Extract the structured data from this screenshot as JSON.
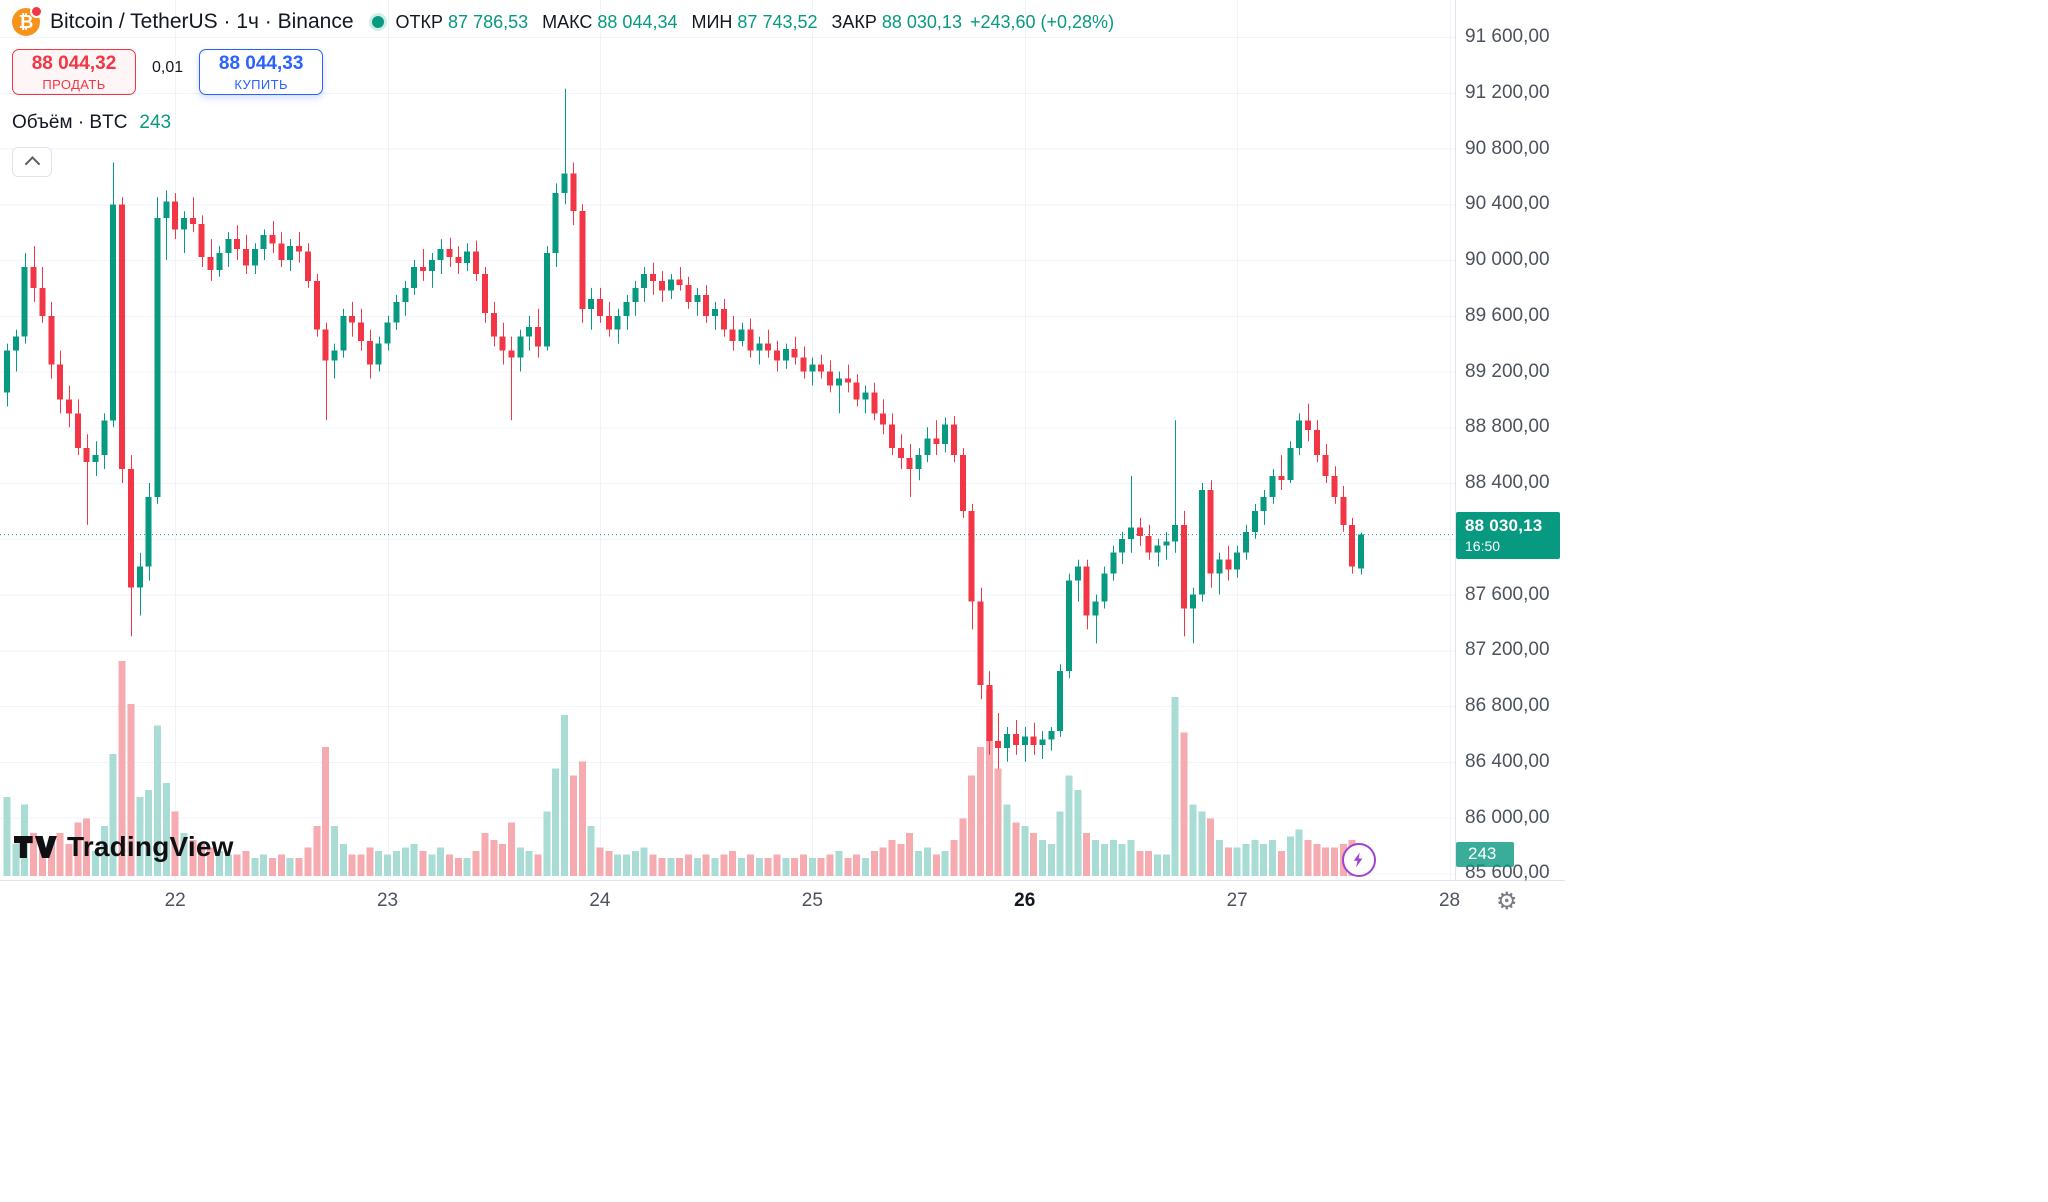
{
  "header": {
    "symbol_title": "Bitcoin / TetherUS · 1ч · Binance",
    "ohlc": {
      "open_label": "ОТКР",
      "open_value": "87 786,53",
      "high_label": "МАКС",
      "high_value": "88 044,34",
      "low_label": "МИН",
      "low_value": "87 743,52",
      "close_label": "ЗАКР",
      "close_value": "88 030,13",
      "change_text": "+243,60 (+0,28%)"
    },
    "sell_button": {
      "price": "88 044,32",
      "label": "ПРОДАТЬ"
    },
    "spread": "0,01",
    "buy_button": {
      "price": "88 044,33",
      "label": "КУПИТЬ"
    },
    "volume_label": "Объём · BTC",
    "volume_value": "243"
  },
  "axis": {
    "price_scale": [
      {
        "text": "91 600,00",
        "value": 91600
      },
      {
        "text": "91 200,00",
        "value": 91200
      },
      {
        "text": "90 800,00",
        "value": 90800
      },
      {
        "text": "90 400,00",
        "value": 90400
      },
      {
        "text": "90 000,00",
        "value": 90000
      },
      {
        "text": "89 600,00",
        "value": 89600
      },
      {
        "text": "89 200,00",
        "value": 89200
      },
      {
        "text": "88 800,00",
        "value": 88800
      },
      {
        "text": "88 400,00",
        "value": 88400
      },
      {
        "text": "88 000,00",
        "value": 88000
      },
      {
        "text": "87 600,00",
        "value": 87600
      },
      {
        "text": "87 200,00",
        "value": 87200
      },
      {
        "text": "86 800,00",
        "value": 86800
      },
      {
        "text": "86 400,00",
        "value": 86400
      },
      {
        "text": "86 000,00",
        "value": 86000
      },
      {
        "text": "85 600,00",
        "value": 85600
      }
    ],
    "time_scale": [
      {
        "text": "22",
        "candle_index": 19,
        "bold": false
      },
      {
        "text": "23",
        "candle_index": 43,
        "bold": false
      },
      {
        "text": "24",
        "candle_index": 67,
        "bold": false
      },
      {
        "text": "25",
        "candle_index": 91,
        "bold": false
      },
      {
        "text": "26",
        "candle_index": 115,
        "bold": true
      },
      {
        "text": "27",
        "candle_index": 139,
        "bold": false
      },
      {
        "text": "28",
        "candle_index": 163,
        "bold": false
      }
    ],
    "last_price_tag": {
      "price": "88 030,13",
      "countdown": "16:50"
    },
    "volume_badge": "243"
  },
  "watermark": {
    "text": "TradingView"
  },
  "colors": {
    "up": "#089981",
    "down": "#f23645",
    "vol_up": "#a9dcd4",
    "vol_down": "#f5abaf",
    "grid": "#f0f3fa",
    "accent_buy": "#2962ff",
    "axis_text": "#4c525e",
    "text": "#131722",
    "tag_bg": "#089981",
    "bolt": "#9c43d6",
    "btc_orange": "#f7931a"
  },
  "chart_data": {
    "type": "candlestick",
    "title": "Bitcoin / TetherUS · 1ч · Binance",
    "pair": "Bitcoin / TetherUS",
    "interval_label": "1ч",
    "exchange": "Binance",
    "y_axis": {
      "min": 85600,
      "max": 91600,
      "step": 400
    },
    "current_price": 88030.13,
    "current_price_time": "16:50",
    "volume_btc": 243,
    "volume_max": 60,
    "last_bar": {
      "open": 87786.53,
      "high": 88044.34,
      "low": 87743.52,
      "close": 88030.13
    },
    "candles": [
      [
        89050,
        89400,
        88950,
        89350,
        22
      ],
      [
        89350,
        89500,
        89200,
        89450,
        9
      ],
      [
        89450,
        90050,
        89400,
        89950,
        20
      ],
      [
        89950,
        90100,
        89700,
        89800,
        12
      ],
      [
        89800,
        89950,
        89550,
        89600,
        8
      ],
      [
        89600,
        89700,
        89150,
        89250,
        10
      ],
      [
        89250,
        89350,
        88900,
        89000,
        12
      ],
      [
        89000,
        89100,
        88800,
        88900,
        9
      ],
      [
        88900,
        89000,
        88600,
        88650,
        15
      ],
      [
        88650,
        88750,
        88100,
        88550,
        16
      ],
      [
        88550,
        88700,
        88450,
        88600,
        7
      ],
      [
        88600,
        88900,
        88500,
        88850,
        14
      ],
      [
        88850,
        90700,
        88800,
        90400,
        34
      ],
      [
        90400,
        90450,
        88400,
        88500,
        60
      ],
      [
        88500,
        88600,
        87300,
        87650,
        48
      ],
      [
        87650,
        87900,
        87450,
        87800,
        22
      ],
      [
        87800,
        88400,
        87700,
        88300,
        24
      ],
      [
        88300,
        90450,
        88250,
        90300,
        42
      ],
      [
        90300,
        90500,
        90000,
        90420,
        26
      ],
      [
        90420,
        90480,
        90150,
        90220,
        18
      ],
      [
        90220,
        90350,
        90050,
        90300,
        12
      ],
      [
        90300,
        90450,
        90200,
        90260,
        10
      ],
      [
        90260,
        90320,
        89950,
        90020,
        9
      ],
      [
        90020,
        90150,
        89850,
        89930,
        8
      ],
      [
        89930,
        90100,
        89880,
        90050,
        7
      ],
      [
        90050,
        90200,
        89950,
        90150,
        6
      ],
      [
        90150,
        90250,
        90000,
        90080,
        6
      ],
      [
        90080,
        90180,
        89900,
        89960,
        7
      ],
      [
        89960,
        90120,
        89900,
        90080,
        5
      ],
      [
        90080,
        90220,
        90000,
        90180,
        6
      ],
      [
        90180,
        90280,
        90050,
        90120,
        5
      ],
      [
        90120,
        90200,
        89950,
        90000,
        6
      ],
      [
        90000,
        90150,
        89920,
        90100,
        5
      ],
      [
        90100,
        90200,
        89980,
        90060,
        5
      ],
      [
        90060,
        90120,
        89800,
        89850,
        8
      ],
      [
        89850,
        89900,
        89450,
        89500,
        14
      ],
      [
        89500,
        89550,
        88850,
        89280,
        36
      ],
      [
        89280,
        89400,
        89150,
        89350,
        14
      ],
      [
        89350,
        89650,
        89300,
        89600,
        9
      ],
      [
        89600,
        89700,
        89450,
        89550,
        6
      ],
      [
        89550,
        89650,
        89350,
        89420,
        6
      ],
      [
        89420,
        89500,
        89150,
        89250,
        8
      ],
      [
        89250,
        89450,
        89200,
        89400,
        7
      ],
      [
        89400,
        89600,
        89350,
        89550,
        6
      ],
      [
        89550,
        89750,
        89500,
        89700,
        7
      ],
      [
        89700,
        89850,
        89600,
        89800,
        8
      ],
      [
        89800,
        90000,
        89750,
        89950,
        9
      ],
      [
        89950,
        90080,
        89850,
        89920,
        7
      ],
      [
        89920,
        90050,
        89800,
        90000,
        6
      ],
      [
        90000,
        90150,
        89900,
        90080,
        8
      ],
      [
        90080,
        90160,
        89950,
        90020,
        6
      ],
      [
        90020,
        90100,
        89900,
        89980,
        5
      ],
      [
        89980,
        90120,
        89920,
        90060,
        5
      ],
      [
        90060,
        90140,
        89850,
        89900,
        7
      ],
      [
        89900,
        89950,
        89550,
        89620,
        12
      ],
      [
        89620,
        89700,
        89380,
        89450,
        10
      ],
      [
        89450,
        89550,
        89250,
        89350,
        9
      ],
      [
        89350,
        89450,
        88850,
        89300,
        15
      ],
      [
        89300,
        89500,
        89200,
        89450,
        8
      ],
      [
        89450,
        89600,
        89350,
        89520,
        7
      ],
      [
        89520,
        89650,
        89300,
        89380,
        6
      ],
      [
        89380,
        90100,
        89350,
        90050,
        18
      ],
      [
        90050,
        90550,
        89950,
        90480,
        30
      ],
      [
        90480,
        91230,
        90400,
        90620,
        45
      ],
      [
        90620,
        90700,
        90250,
        90350,
        28
      ],
      [
        90350,
        90400,
        89550,
        89650,
        32
      ],
      [
        89650,
        89800,
        89500,
        89720,
        14
      ],
      [
        89720,
        89800,
        89550,
        89600,
        8
      ],
      [
        89600,
        89700,
        89450,
        89500,
        7
      ],
      [
        89500,
        89650,
        89400,
        89600,
        6
      ],
      [
        89600,
        89750,
        89500,
        89700,
        6
      ],
      [
        89700,
        89850,
        89600,
        89800,
        7
      ],
      [
        89800,
        89950,
        89700,
        89900,
        8
      ],
      [
        89900,
        89980,
        89750,
        89850,
        6
      ],
      [
        89850,
        89920,
        89700,
        89780,
        5
      ],
      [
        89780,
        89900,
        89720,
        89860,
        5
      ],
      [
        89860,
        89950,
        89780,
        89820,
        5
      ],
      [
        89820,
        89880,
        89650,
        89700,
        6
      ],
      [
        89700,
        89800,
        89600,
        89750,
        5
      ],
      [
        89750,
        89820,
        89550,
        89600,
        6
      ],
      [
        89600,
        89700,
        89500,
        89650,
        5
      ],
      [
        89650,
        89720,
        89450,
        89500,
        6
      ],
      [
        89500,
        89600,
        89350,
        89420,
        7
      ],
      [
        89420,
        89550,
        89380,
        89500,
        5
      ],
      [
        89500,
        89580,
        89300,
        89350,
        6
      ],
      [
        89350,
        89450,
        89250,
        89400,
        5
      ],
      [
        89400,
        89500,
        89300,
        89350,
        5
      ],
      [
        89350,
        89420,
        89200,
        89280,
        6
      ],
      [
        89280,
        89400,
        89220,
        89360,
        5
      ],
      [
        89360,
        89450,
        89250,
        89300,
        5
      ],
      [
        89300,
        89380,
        89150,
        89200,
        6
      ],
      [
        89200,
        89300,
        89100,
        89250,
        5
      ],
      [
        89250,
        89320,
        89150,
        89200,
        5
      ],
      [
        89200,
        89280,
        89050,
        89100,
        6
      ],
      [
        89100,
        89200,
        88900,
        89150,
        7
      ],
      [
        89150,
        89250,
        89050,
        89120,
        5
      ],
      [
        89120,
        89180,
        88950,
        89000,
        6
      ],
      [
        89000,
        89100,
        88900,
        89050,
        5
      ],
      [
        89050,
        89120,
        88850,
        88900,
        7
      ],
      [
        88900,
        89000,
        88750,
        88820,
        8
      ],
      [
        88820,
        88900,
        88600,
        88650,
        10
      ],
      [
        88650,
        88750,
        88500,
        88580,
        9
      ],
      [
        88580,
        88680,
        88300,
        88500,
        12
      ],
      [
        88500,
        88650,
        88420,
        88600,
        7
      ],
      [
        88600,
        88800,
        88550,
        88720,
        8
      ],
      [
        88720,
        88850,
        88600,
        88680,
        6
      ],
      [
        88680,
        88870,
        88620,
        88820,
        7
      ],
      [
        88820,
        88880,
        88550,
        88600,
        10
      ],
      [
        88600,
        88650,
        88150,
        88200,
        16
      ],
      [
        88200,
        88250,
        87350,
        87550,
        28
      ],
      [
        87550,
        87650,
        86850,
        86950,
        36
      ],
      [
        86950,
        87050,
        86450,
        86550,
        52
      ],
      [
        86550,
        86750,
        86350,
        86500,
        30
      ],
      [
        86500,
        86650,
        86400,
        86600,
        20
      ],
      [
        86600,
        86700,
        86450,
        86520,
        15
      ],
      [
        86520,
        86650,
        86400,
        86580,
        14
      ],
      [
        86580,
        86680,
        86450,
        86520,
        12
      ],
      [
        86520,
        86620,
        86420,
        86560,
        10
      ],
      [
        86560,
        86650,
        86480,
        86620,
        9
      ],
      [
        86620,
        87100,
        86580,
        87050,
        18
      ],
      [
        87050,
        87750,
        87000,
        87700,
        28
      ],
      [
        87700,
        87850,
        87550,
        87800,
        24
      ],
      [
        87800,
        87850,
        87350,
        87450,
        12
      ],
      [
        87450,
        87600,
        87250,
        87550,
        10
      ],
      [
        87550,
        87800,
        87500,
        87750,
        9
      ],
      [
        87750,
        87950,
        87700,
        87900,
        10
      ],
      [
        87900,
        88050,
        87820,
        88000,
        9
      ],
      [
        88000,
        88450,
        87900,
        88080,
        10
      ],
      [
        88080,
        88150,
        87950,
        88020,
        7
      ],
      [
        88020,
        88100,
        87850,
        87900,
        7
      ],
      [
        87900,
        88000,
        87800,
        87950,
        6
      ],
      [
        87950,
        88050,
        87850,
        87980,
        6
      ],
      [
        87980,
        88850,
        87900,
        88100,
        50
      ],
      [
        88100,
        88200,
        87300,
        87500,
        40
      ],
      [
        87500,
        87650,
        87250,
        87600,
        20
      ],
      [
        87600,
        88400,
        87550,
        88350,
        18
      ],
      [
        88350,
        88420,
        87650,
        87750,
        16
      ],
      [
        87750,
        87900,
        87600,
        87850,
        10
      ],
      [
        87850,
        87950,
        87700,
        87780,
        8
      ],
      [
        87780,
        87950,
        87720,
        87900,
        8
      ],
      [
        87900,
        88100,
        87850,
        88050,
        9
      ],
      [
        88050,
        88250,
        88000,
        88200,
        10
      ],
      [
        88200,
        88350,
        88100,
        88300,
        9
      ],
      [
        88300,
        88500,
        88250,
        88450,
        10
      ],
      [
        88450,
        88600,
        88350,
        88420,
        7
      ],
      [
        88420,
        88700,
        88400,
        88650,
        11
      ],
      [
        88650,
        88900,
        88600,
        88850,
        13
      ],
      [
        88850,
        88970,
        88700,
        88780,
        10
      ],
      [
        88780,
        88850,
        88550,
        88600,
        9
      ],
      [
        88600,
        88680,
        88400,
        88450,
        8
      ],
      [
        88450,
        88520,
        88250,
        88300,
        8
      ],
      [
        88300,
        88380,
        88050,
        88100,
        9
      ],
      [
        88100,
        88150,
        87750,
        87800,
        10
      ],
      [
        87786.53,
        88044.34,
        87743.52,
        88030.13,
        8
      ]
    ]
  }
}
